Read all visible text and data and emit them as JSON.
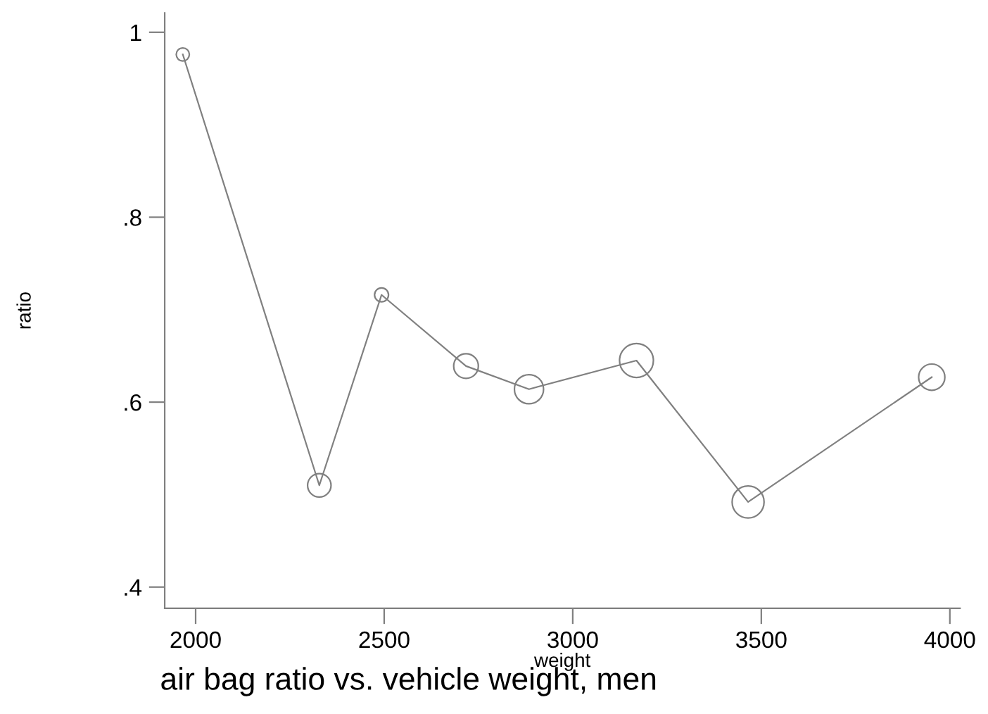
{
  "chart_data": {
    "type": "bubble",
    "title": "air bag ratio vs. vehicle weight, men",
    "xlabel": "weight",
    "ylabel": "ratio",
    "xlim": [
      1918,
      4027
    ],
    "xticks": [
      2000,
      2500,
      3000,
      3500,
      4000
    ],
    "ylim": [
      0.377,
      1.021
    ],
    "yticks": [
      {
        "value": 0.4,
        "label": ".4"
      },
      {
        "value": 0.6,
        "label": ".6"
      },
      {
        "value": 0.8,
        "label": ".8"
      },
      {
        "value": 1,
        "label": "1"
      }
    ],
    "grid": false,
    "legend": false,
    "series": [
      {
        "type": "line",
        "color": "#808080",
        "marker": "none",
        "line_style": "solid",
        "x": [
          1966,
          2328,
          2493,
          2717,
          2884,
          3169,
          3465,
          3952
        ],
        "values": [
          0.976,
          0.51,
          0.716,
          0.639,
          0.614,
          0.645,
          0.492,
          0.627
        ]
      },
      {
        "color": "#808080",
        "x": [
          1966,
          2328,
          2493,
          2717,
          2884,
          3169,
          3465,
          3952
        ],
        "values": [
          0.976,
          0.51,
          0.716,
          0.639,
          0.614,
          0.645,
          0.492,
          0.627
        ],
        "sizes": [
          0.15,
          0.48,
          0.17,
          0.53,
          0.74,
          1,
          0.89,
          0.6
        ]
      }
    ]
  }
}
